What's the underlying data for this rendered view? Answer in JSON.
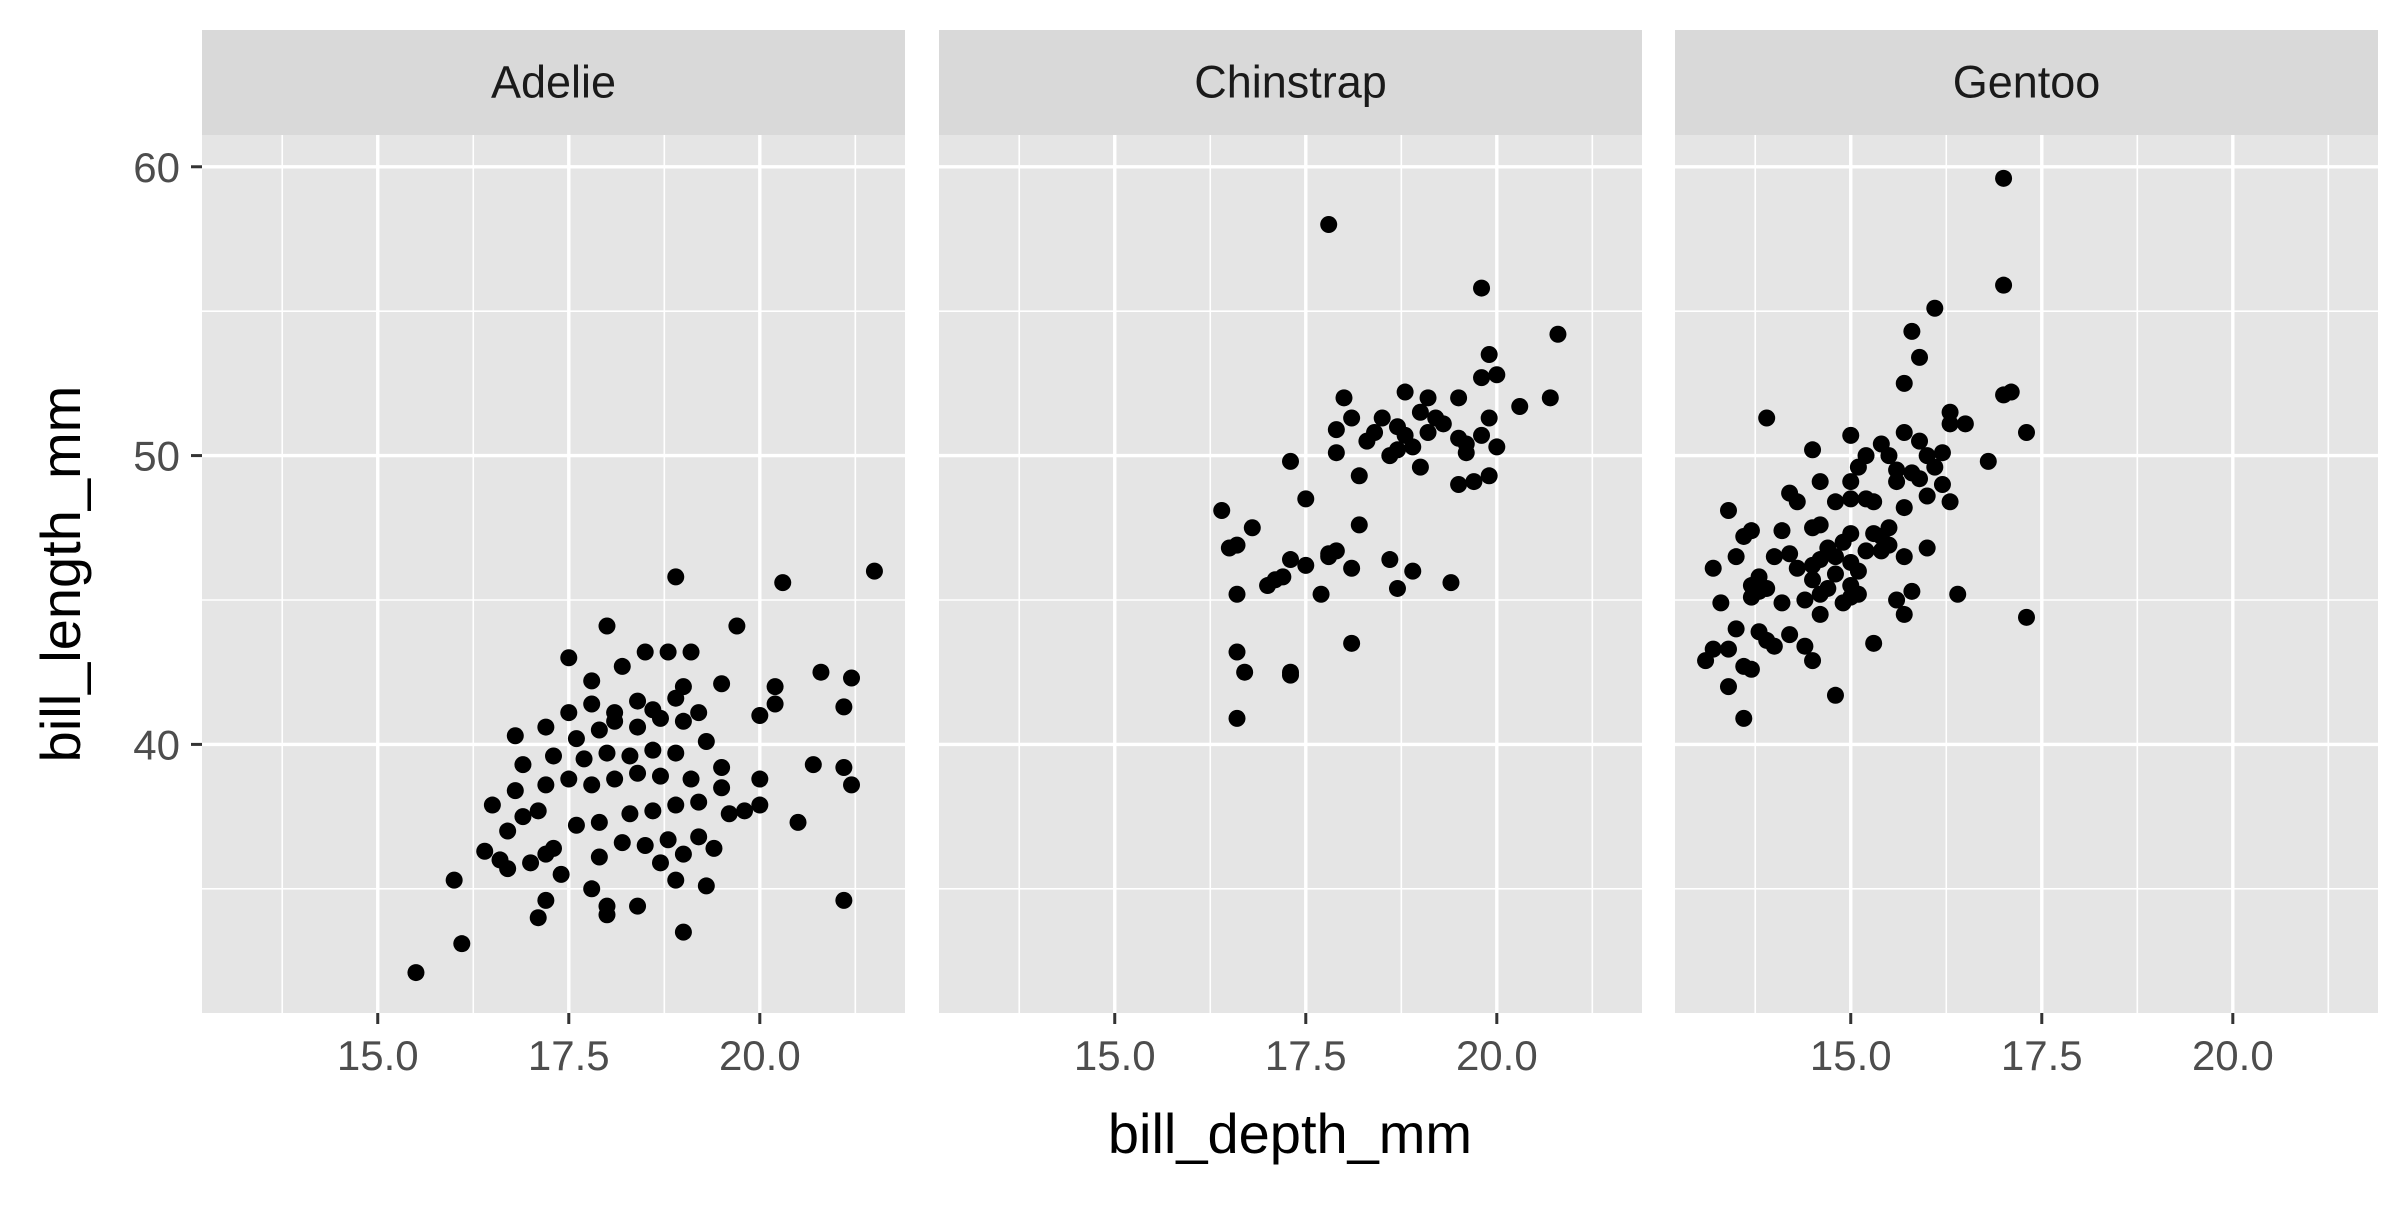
{
  "chart_data": {
    "type": "scatter",
    "title": "",
    "xlabel": "bill_depth_mm",
    "ylabel": "bill_length_mm",
    "xlim": [
      12.7,
      21.9
    ],
    "ylim": [
      30.7,
      61.1
    ],
    "x_ticks": [
      15.0,
      17.5,
      20.0
    ],
    "x_tick_labels": [
      "15.0",
      "17.5",
      "20.0"
    ],
    "y_ticks": [
      40,
      50,
      60
    ],
    "y_tick_labels": [
      "40",
      "50",
      "60"
    ],
    "grid": true,
    "legend": "none",
    "point_color": "#000000",
    "panel_background": "#e5e5e5",
    "strip_background": "#d9d9d9",
    "facets": [
      {
        "label": "Adelie",
        "points": [
          [
            15.5,
            32.1
          ],
          [
            16.1,
            33.1
          ],
          [
            17.1,
            34.0
          ],
          [
            18.0,
            34.1
          ],
          [
            18.0,
            34.4
          ],
          [
            17.2,
            34.6
          ],
          [
            18.4,
            34.4
          ],
          [
            17.8,
            35.0
          ],
          [
            18.9,
            35.3
          ],
          [
            19.3,
            35.1
          ],
          [
            19.8,
            37.7
          ],
          [
            16.0,
            35.3
          ],
          [
            16.6,
            36.0
          ],
          [
            17.2,
            36.2
          ],
          [
            16.7,
            37.0
          ],
          [
            17.3,
            36.4
          ],
          [
            17.9,
            36.1
          ],
          [
            18.2,
            36.6
          ],
          [
            18.5,
            36.5
          ],
          [
            18.8,
            36.7
          ],
          [
            19.0,
            36.2
          ],
          [
            19.4,
            36.4
          ],
          [
            19.2,
            36.8
          ],
          [
            16.5,
            37.9
          ],
          [
            16.9,
            37.5
          ],
          [
            17.1,
            37.7
          ],
          [
            17.6,
            37.2
          ],
          [
            17.9,
            37.3
          ],
          [
            18.3,
            37.6
          ],
          [
            18.6,
            37.7
          ],
          [
            18.9,
            37.9
          ],
          [
            19.2,
            38.0
          ],
          [
            19.6,
            37.6
          ],
          [
            20.0,
            37.9
          ],
          [
            16.8,
            38.4
          ],
          [
            17.2,
            38.6
          ],
          [
            17.5,
            38.8
          ],
          [
            17.8,
            38.6
          ],
          [
            18.1,
            38.8
          ],
          [
            18.4,
            39.0
          ],
          [
            18.7,
            38.9
          ],
          [
            19.1,
            38.8
          ],
          [
            19.5,
            39.2
          ],
          [
            20.0,
            38.8
          ],
          [
            20.7,
            39.3
          ],
          [
            16.9,
            39.3
          ],
          [
            17.3,
            39.6
          ],
          [
            17.7,
            39.5
          ],
          [
            18.0,
            39.7
          ],
          [
            18.3,
            39.6
          ],
          [
            18.6,
            39.8
          ],
          [
            18.9,
            39.7
          ],
          [
            19.3,
            40.1
          ],
          [
            20.5,
            37.3
          ],
          [
            16.8,
            40.3
          ],
          [
            17.2,
            40.6
          ],
          [
            17.6,
            40.2
          ],
          [
            17.9,
            40.5
          ],
          [
            18.1,
            40.8
          ],
          [
            18.4,
            40.6
          ],
          [
            18.7,
            40.9
          ],
          [
            19.0,
            40.8
          ],
          [
            19.2,
            41.1
          ],
          [
            20.0,
            41.0
          ],
          [
            20.2,
            41.4
          ],
          [
            17.5,
            41.1
          ],
          [
            17.8,
            41.4
          ],
          [
            18.1,
            41.1
          ],
          [
            18.4,
            41.5
          ],
          [
            18.6,
            41.2
          ],
          [
            18.9,
            41.6
          ],
          [
            19.0,
            42.0
          ],
          [
            19.5,
            42.1
          ],
          [
            20.2,
            42.0
          ],
          [
            20.8,
            42.5
          ],
          [
            21.2,
            42.3
          ],
          [
            17.8,
            42.2
          ],
          [
            18.2,
            42.7
          ],
          [
            18.5,
            43.2
          ],
          [
            18.8,
            43.2
          ],
          [
            19.1,
            43.2
          ],
          [
            19.7,
            44.1
          ],
          [
            17.5,
            43.0
          ],
          [
            18.0,
            44.1
          ],
          [
            18.9,
            45.8
          ],
          [
            20.3,
            45.6
          ],
          [
            21.5,
            46.0
          ],
          [
            21.1,
            41.3
          ],
          [
            21.1,
            39.2
          ],
          [
            21.2,
            38.6
          ],
          [
            21.1,
            34.6
          ],
          [
            19.0,
            33.5
          ],
          [
            16.4,
            36.3
          ],
          [
            16.7,
            35.7
          ],
          [
            17.0,
            35.9
          ],
          [
            17.4,
            35.5
          ],
          [
            18.7,
            35.9
          ],
          [
            19.5,
            38.5
          ]
        ]
      },
      {
        "label": "Chinstrap",
        "points": [
          [
            16.4,
            48.1
          ],
          [
            16.5,
            46.8
          ],
          [
            16.6,
            46.9
          ],
          [
            16.6,
            45.2
          ],
          [
            16.6,
            43.2
          ],
          [
            16.6,
            40.9
          ],
          [
            16.7,
            42.5
          ],
          [
            16.8,
            47.5
          ],
          [
            17.0,
            45.5
          ],
          [
            17.1,
            45.7
          ],
          [
            17.2,
            45.8
          ],
          [
            17.3,
            49.8
          ],
          [
            17.3,
            46.4
          ],
          [
            17.3,
            42.5
          ],
          [
            17.3,
            42.4
          ],
          [
            17.5,
            48.5
          ],
          [
            17.5,
            46.2
          ],
          [
            17.7,
            45.2
          ],
          [
            17.8,
            46.5
          ],
          [
            17.8,
            46.6
          ],
          [
            17.8,
            58.0
          ],
          [
            17.9,
            46.7
          ],
          [
            17.9,
            50.9
          ],
          [
            17.9,
            50.1
          ],
          [
            18.0,
            52.0
          ],
          [
            18.1,
            43.5
          ],
          [
            18.1,
            46.1
          ],
          [
            18.1,
            51.3
          ],
          [
            18.2,
            47.6
          ],
          [
            18.2,
            49.3
          ],
          [
            18.3,
            50.5
          ],
          [
            18.4,
            50.8
          ],
          [
            18.5,
            51.3
          ],
          [
            18.6,
            46.4
          ],
          [
            18.6,
            50.0
          ],
          [
            18.7,
            50.2
          ],
          [
            18.7,
            45.4
          ],
          [
            18.7,
            51.0
          ],
          [
            18.8,
            50.7
          ],
          [
            18.8,
            52.2
          ],
          [
            18.9,
            46.0
          ],
          [
            18.9,
            50.3
          ],
          [
            19.0,
            51.5
          ],
          [
            19.0,
            49.6
          ],
          [
            19.1,
            50.8
          ],
          [
            19.1,
            52.0
          ],
          [
            19.2,
            51.3
          ],
          [
            19.3,
            51.1
          ],
          [
            19.4,
            45.6
          ],
          [
            19.5,
            50.6
          ],
          [
            19.5,
            52.0
          ],
          [
            19.5,
            49.0
          ],
          [
            19.6,
            50.1
          ],
          [
            19.6,
            50.4
          ],
          [
            19.7,
            49.1
          ],
          [
            19.8,
            50.7
          ],
          [
            19.8,
            52.7
          ],
          [
            19.8,
            55.8
          ],
          [
            19.9,
            49.3
          ],
          [
            19.9,
            51.3
          ],
          [
            19.9,
            53.5
          ],
          [
            20.0,
            50.3
          ],
          [
            20.0,
            52.8
          ],
          [
            20.3,
            51.7
          ],
          [
            20.7,
            52.0
          ],
          [
            20.8,
            54.2
          ]
        ]
      },
      {
        "label": "Gentoo",
        "points": [
          [
            13.1,
            42.9
          ],
          [
            13.2,
            46.1
          ],
          [
            13.3,
            44.9
          ],
          [
            13.4,
            43.3
          ],
          [
            13.4,
            42.0
          ],
          [
            13.5,
            46.5
          ],
          [
            13.5,
            44.0
          ],
          [
            13.6,
            47.2
          ],
          [
            13.6,
            42.7
          ],
          [
            13.6,
            40.9
          ],
          [
            13.7,
            45.5
          ],
          [
            13.7,
            45.1
          ],
          [
            13.7,
            47.4
          ],
          [
            13.7,
            42.6
          ],
          [
            13.8,
            45.3
          ],
          [
            13.8,
            43.9
          ],
          [
            13.8,
            45.8
          ],
          [
            13.9,
            45.4
          ],
          [
            13.9,
            43.6
          ],
          [
            14.0,
            46.5
          ],
          [
            14.0,
            43.4
          ],
          [
            14.1,
            44.9
          ],
          [
            14.1,
            47.4
          ],
          [
            14.2,
            46.6
          ],
          [
            14.2,
            43.8
          ],
          [
            14.2,
            48.7
          ],
          [
            14.3,
            46.1
          ],
          [
            14.3,
            48.4
          ],
          [
            14.4,
            45.0
          ],
          [
            14.4,
            43.4
          ],
          [
            14.5,
            46.2
          ],
          [
            14.5,
            45.7
          ],
          [
            14.5,
            47.5
          ],
          [
            14.5,
            50.2
          ],
          [
            14.5,
            42.9
          ],
          [
            14.6,
            45.2
          ],
          [
            14.6,
            46.4
          ],
          [
            14.6,
            44.5
          ],
          [
            14.6,
            47.6
          ],
          [
            14.7,
            46.8
          ],
          [
            14.7,
            45.4
          ],
          [
            14.8,
            45.9
          ],
          [
            14.8,
            48.4
          ],
          [
            14.8,
            46.5
          ],
          [
            14.8,
            41.7
          ],
          [
            14.9,
            47.0
          ],
          [
            14.9,
            44.9
          ],
          [
            15.0,
            45.5
          ],
          [
            15.0,
            46.3
          ],
          [
            15.0,
            48.5
          ],
          [
            15.0,
            49.1
          ],
          [
            15.0,
            50.7
          ],
          [
            15.0,
            45.1
          ],
          [
            15.0,
            47.3
          ],
          [
            15.1,
            45.2
          ],
          [
            15.1,
            49.6
          ],
          [
            15.1,
            46.0
          ],
          [
            15.2,
            48.5
          ],
          [
            15.2,
            50.0
          ],
          [
            15.2,
            46.7
          ],
          [
            15.3,
            47.3
          ],
          [
            15.3,
            43.5
          ],
          [
            15.3,
            48.4
          ],
          [
            15.4,
            46.7
          ],
          [
            15.4,
            47.2
          ],
          [
            15.4,
            50.4
          ],
          [
            15.5,
            46.9
          ],
          [
            15.5,
            47.5
          ],
          [
            15.5,
            50.0
          ],
          [
            15.6,
            49.1
          ],
          [
            15.6,
            49.5
          ],
          [
            15.6,
            45.0
          ],
          [
            15.7,
            46.5
          ],
          [
            15.7,
            44.5
          ],
          [
            15.7,
            48.2
          ],
          [
            15.7,
            52.5
          ],
          [
            15.7,
            50.8
          ],
          [
            15.8,
            49.4
          ],
          [
            15.8,
            45.3
          ],
          [
            15.8,
            54.3
          ],
          [
            15.9,
            50.5
          ],
          [
            15.9,
            49.2
          ],
          [
            15.9,
            53.4
          ],
          [
            16.0,
            48.6
          ],
          [
            16.0,
            50.0
          ],
          [
            16.0,
            46.8
          ],
          [
            16.1,
            49.6
          ],
          [
            16.1,
            55.1
          ],
          [
            16.2,
            49.0
          ],
          [
            16.2,
            50.1
          ],
          [
            16.3,
            48.4
          ],
          [
            16.3,
            51.5
          ],
          [
            16.3,
            51.1
          ],
          [
            16.4,
            45.2
          ],
          [
            16.5,
            51.1
          ],
          [
            16.8,
            49.8
          ],
          [
            17.0,
            52.1
          ],
          [
            17.0,
            55.9
          ],
          [
            17.0,
            59.6
          ],
          [
            17.1,
            52.2
          ],
          [
            17.3,
            50.8
          ],
          [
            17.3,
            44.4
          ],
          [
            13.2,
            43.3
          ],
          [
            13.4,
            48.1
          ],
          [
            13.9,
            51.3
          ],
          [
            14.6,
            49.1
          ]
        ]
      }
    ]
  }
}
